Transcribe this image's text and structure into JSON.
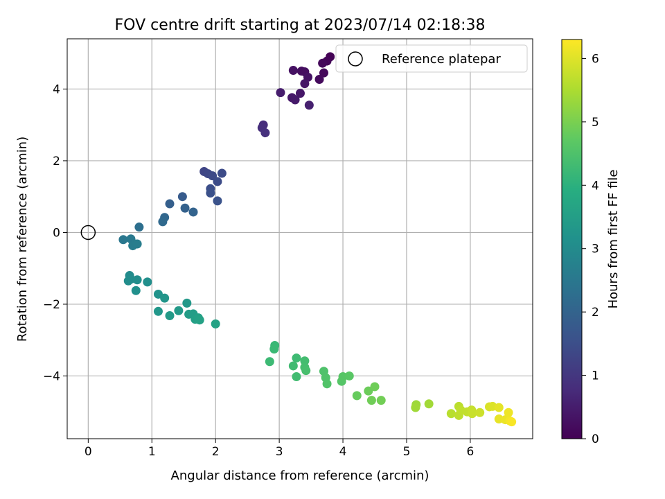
{
  "chart_data": {
    "type": "scatter",
    "title": "FOV centre drift starting at 2023/07/14 02:18:38",
    "xlabel": "Angular distance from reference (arcmin)",
    "ylabel": "Rotation from reference (arcmin)",
    "xlim": [
      -0.33,
      6.98
    ],
    "ylim": [
      -5.75,
      5.4
    ],
    "xticks": [
      0,
      1,
      2,
      3,
      4,
      5,
      6
    ],
    "yticks": [
      -4,
      -2,
      0,
      2,
      4
    ],
    "grid": true,
    "legend": {
      "position": "top-right",
      "entries": [
        "Reference platepar"
      ]
    },
    "reference_point": {
      "x": 0,
      "y": 0,
      "label": "Reference platepar"
    },
    "colorbar": {
      "label": "Hours from first FF file",
      "colormap": "viridis",
      "range": [
        0,
        6.3
      ],
      "ticks": [
        0,
        1,
        2,
        3,
        4,
        5,
        6
      ]
    },
    "points": [
      {
        "x": 3.8,
        "y": 4.9,
        "h": 0.02
      },
      {
        "x": 3.75,
        "y": 4.78,
        "h": 0.08
      },
      {
        "x": 3.68,
        "y": 4.72,
        "h": 0.12
      },
      {
        "x": 3.7,
        "y": 4.45,
        "h": 0.15
      },
      {
        "x": 3.63,
        "y": 4.27,
        "h": 0.18
      },
      {
        "x": 3.35,
        "y": 4.5,
        "h": 0.22
      },
      {
        "x": 3.4,
        "y": 4.48,
        "h": 0.25
      },
      {
        "x": 3.22,
        "y": 4.52,
        "h": 0.28
      },
      {
        "x": 3.45,
        "y": 4.33,
        "h": 0.32
      },
      {
        "x": 3.4,
        "y": 4.15,
        "h": 0.35
      },
      {
        "x": 3.33,
        "y": 3.88,
        "h": 0.4
      },
      {
        "x": 3.2,
        "y": 3.76,
        "h": 0.42
      },
      {
        "x": 3.25,
        "y": 3.7,
        "h": 0.45
      },
      {
        "x": 3.02,
        "y": 3.9,
        "h": 0.5
      },
      {
        "x": 3.47,
        "y": 3.55,
        "h": 0.55
      },
      {
        "x": 2.75,
        "y": 3.0,
        "h": 0.78
      },
      {
        "x": 2.73,
        "y": 2.92,
        "h": 0.82
      },
      {
        "x": 2.78,
        "y": 2.78,
        "h": 0.88
      },
      {
        "x": 1.82,
        "y": 1.7,
        "h": 1.3
      },
      {
        "x": 1.88,
        "y": 1.64,
        "h": 1.35
      },
      {
        "x": 1.95,
        "y": 1.58,
        "h": 1.4
      },
      {
        "x": 2.1,
        "y": 1.65,
        "h": 1.42
      },
      {
        "x": 2.03,
        "y": 1.42,
        "h": 1.45
      },
      {
        "x": 1.92,
        "y": 1.22,
        "h": 1.5
      },
      {
        "x": 1.92,
        "y": 1.1,
        "h": 1.55
      },
      {
        "x": 2.03,
        "y": 0.88,
        "h": 1.6
      },
      {
        "x": 1.48,
        "y": 1.0,
        "h": 1.8
      },
      {
        "x": 1.28,
        "y": 0.8,
        "h": 1.9
      },
      {
        "x": 1.52,
        "y": 0.68,
        "h": 1.95
      },
      {
        "x": 1.65,
        "y": 0.57,
        "h": 2.0
      },
      {
        "x": 1.2,
        "y": 0.42,
        "h": 2.1
      },
      {
        "x": 1.17,
        "y": 0.3,
        "h": 2.15
      },
      {
        "x": 0.8,
        "y": 0.15,
        "h": 2.3
      },
      {
        "x": 0.55,
        "y": -0.2,
        "h": 2.5
      },
      {
        "x": 0.67,
        "y": -0.18,
        "h": 2.55
      },
      {
        "x": 0.73,
        "y": -0.32,
        "h": 2.6
      },
      {
        "x": 0.7,
        "y": -0.37,
        "h": 2.62
      },
      {
        "x": 0.77,
        "y": -0.32,
        "h": 2.65
      },
      {
        "x": 0.65,
        "y": -1.2,
        "h": 3.0
      },
      {
        "x": 0.67,
        "y": -1.3,
        "h": 3.02
      },
      {
        "x": 0.63,
        "y": -1.35,
        "h": 3.05
      },
      {
        "x": 0.77,
        "y": -1.32,
        "h": 3.08
      },
      {
        "x": 0.93,
        "y": -1.38,
        "h": 3.1
      },
      {
        "x": 0.75,
        "y": -1.62,
        "h": 3.12
      },
      {
        "x": 1.1,
        "y": -1.72,
        "h": 3.2
      },
      {
        "x": 1.2,
        "y": -1.83,
        "h": 3.25
      },
      {
        "x": 1.55,
        "y": -1.97,
        "h": 3.35
      },
      {
        "x": 1.1,
        "y": -2.2,
        "h": 3.3
      },
      {
        "x": 1.42,
        "y": -2.18,
        "h": 3.38
      },
      {
        "x": 1.28,
        "y": -2.32,
        "h": 3.4
      },
      {
        "x": 1.58,
        "y": -2.28,
        "h": 3.45
      },
      {
        "x": 1.65,
        "y": -2.27,
        "h": 3.48
      },
      {
        "x": 1.68,
        "y": -2.42,
        "h": 3.52
      },
      {
        "x": 1.73,
        "y": -2.38,
        "h": 3.55
      },
      {
        "x": 1.75,
        "y": -2.44,
        "h": 3.58
      },
      {
        "x": 2.0,
        "y": -2.55,
        "h": 3.62
      },
      {
        "x": 2.93,
        "y": -3.15,
        "h": 4.2
      },
      {
        "x": 2.92,
        "y": -3.25,
        "h": 4.22
      },
      {
        "x": 2.85,
        "y": -3.6,
        "h": 4.25
      },
      {
        "x": 3.27,
        "y": -3.5,
        "h": 4.28
      },
      {
        "x": 3.22,
        "y": -3.72,
        "h": 4.3
      },
      {
        "x": 3.27,
        "y": -4.02,
        "h": 4.32
      },
      {
        "x": 3.4,
        "y": -3.58,
        "h": 4.35
      },
      {
        "x": 3.4,
        "y": -3.76,
        "h": 4.38
      },
      {
        "x": 3.42,
        "y": -3.85,
        "h": 4.4
      },
      {
        "x": 3.7,
        "y": -3.87,
        "h": 4.5
      },
      {
        "x": 3.73,
        "y": -4.05,
        "h": 4.52
      },
      {
        "x": 3.75,
        "y": -4.22,
        "h": 4.55
      },
      {
        "x": 3.98,
        "y": -4.15,
        "h": 4.6
      },
      {
        "x": 4.0,
        "y": -4.02,
        "h": 4.62
      },
      {
        "x": 4.1,
        "y": -4.0,
        "h": 4.65
      },
      {
        "x": 4.22,
        "y": -4.55,
        "h": 4.8
      },
      {
        "x": 4.4,
        "y": -4.42,
        "h": 4.85
      },
      {
        "x": 4.5,
        "y": -4.3,
        "h": 4.88
      },
      {
        "x": 4.45,
        "y": -4.68,
        "h": 4.9
      },
      {
        "x": 4.6,
        "y": -4.68,
        "h": 4.92
      },
      {
        "x": 5.15,
        "y": -4.8,
        "h": 5.35
      },
      {
        "x": 5.14,
        "y": -4.88,
        "h": 5.38
      },
      {
        "x": 5.35,
        "y": -4.78,
        "h": 5.4
      },
      {
        "x": 5.82,
        "y": -4.85,
        "h": 5.65
      },
      {
        "x": 5.7,
        "y": -5.05,
        "h": 5.62
      },
      {
        "x": 5.82,
        "y": -5.1,
        "h": 5.68
      },
      {
        "x": 5.85,
        "y": -4.95,
        "h": 5.7
      },
      {
        "x": 5.95,
        "y": -5.0,
        "h": 5.72
      },
      {
        "x": 6.02,
        "y": -4.95,
        "h": 5.75
      },
      {
        "x": 6.03,
        "y": -5.05,
        "h": 5.78
      },
      {
        "x": 6.15,
        "y": -5.02,
        "h": 5.82
      },
      {
        "x": 6.3,
        "y": -4.86,
        "h": 5.95
      },
      {
        "x": 6.35,
        "y": -4.85,
        "h": 5.98
      },
      {
        "x": 6.45,
        "y": -4.88,
        "h": 6.05
      },
      {
        "x": 6.45,
        "y": -5.2,
        "h": 6.08
      },
      {
        "x": 6.55,
        "y": -5.22,
        "h": 6.12
      },
      {
        "x": 6.6,
        "y": -5.02,
        "h": 6.15
      },
      {
        "x": 6.62,
        "y": -5.25,
        "h": 6.2
      },
      {
        "x": 6.65,
        "y": -5.28,
        "h": 6.25
      }
    ]
  }
}
